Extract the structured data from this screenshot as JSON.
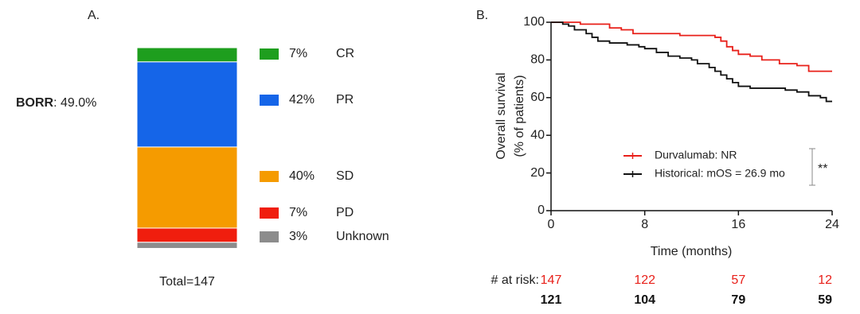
{
  "chart_data": [
    {
      "type": "stacked-bar",
      "panel_label": "A.",
      "annotation": {
        "bold": "BORR",
        "text": ": 49.0%"
      },
      "footer": "Total=147",
      "series": [
        {
          "name": "CR",
          "color": "#1e9e1e",
          "values": [
            7
          ],
          "value_labels": [
            "7%"
          ]
        },
        {
          "name": "PR",
          "color": "#1565e8",
          "values": [
            42
          ],
          "value_labels": [
            "42%"
          ]
        },
        {
          "name": "SD",
          "color": "#f59b00",
          "values": [
            40
          ],
          "value_labels": [
            "40%"
          ]
        },
        {
          "name": "PD",
          "color": "#f01e0e",
          "values": [
            7
          ],
          "value_labels": [
            "7%"
          ]
        },
        {
          "name": "Unknown",
          "color": "#8c8c8c",
          "values": [
            3
          ],
          "value_labels": [
            "3%"
          ]
        }
      ]
    },
    {
      "type": "line",
      "panel_label": "B.",
      "xlabel": "Time (months)",
      "ylabel": [
        "Overall survival",
        "(% of patients)"
      ],
      "xlim": [
        0,
        24
      ],
      "ylim": [
        0,
        100
      ],
      "xticks": [
        0,
        8,
        16,
        24
      ],
      "yticks": [
        0,
        20,
        40,
        60,
        80,
        100
      ],
      "series": [
        {
          "name": "Durvalumab: NR",
          "color": "#e8201a",
          "x": [
            0,
            2.5,
            2.5,
            5,
            5,
            6,
            6,
            7,
            7,
            11,
            11,
            14,
            14,
            14.5,
            14.5,
            15,
            15,
            15.5,
            15.5,
            16,
            16,
            17,
            17,
            18,
            18,
            19.5,
            19.5,
            21,
            21,
            22,
            22,
            24
          ],
          "values": [
            100,
            100,
            99,
            99,
            97,
            97,
            96,
            96,
            94,
            94,
            93,
            93,
            92,
            92,
            90,
            90,
            87,
            87,
            85,
            85,
            83,
            83,
            82,
            82,
            80,
            80,
            78,
            78,
            77,
            77,
            74,
            74
          ]
        },
        {
          "name": "Historical: mOS = 26.9 mo",
          "color": "#111111",
          "x": [
            0,
            1,
            1,
            1.5,
            1.5,
            2,
            2,
            3,
            3,
            3.5,
            3.5,
            4,
            4,
            5,
            5,
            6.5,
            6.5,
            7.5,
            7.5,
            8,
            8,
            9,
            9,
            10,
            10,
            11,
            11,
            12,
            12,
            12.5,
            12.5,
            13.5,
            13.5,
            14,
            14,
            14.5,
            14.5,
            15,
            15,
            15.5,
            15.5,
            16,
            16,
            17,
            17,
            20,
            20,
            21,
            21,
            22,
            22,
            23,
            23,
            23.5,
            23.5,
            24
          ],
          "values": [
            100,
            100,
            99,
            99,
            98,
            98,
            96,
            96,
            94,
            94,
            92,
            92,
            90,
            90,
            89,
            89,
            88,
            88,
            87,
            87,
            86,
            86,
            84,
            84,
            82,
            82,
            81,
            81,
            80,
            80,
            78,
            78,
            76,
            76,
            74,
            74,
            72,
            72,
            70,
            70,
            68,
            68,
            66,
            66,
            65,
            65,
            64,
            64,
            63,
            63,
            61,
            61,
            60,
            60,
            58,
            58
          ]
        }
      ],
      "significance": "**",
      "risk_table": {
        "label": "# at risk:",
        "x": [
          0,
          8,
          16,
          24
        ],
        "rows": [
          {
            "color": "#e8201a",
            "bold": false,
            "values": [
              147,
              122,
              57,
              12
            ]
          },
          {
            "color": "#111111",
            "bold": true,
            "values": [
              121,
              104,
              79,
              59
            ]
          }
        ]
      }
    }
  ]
}
